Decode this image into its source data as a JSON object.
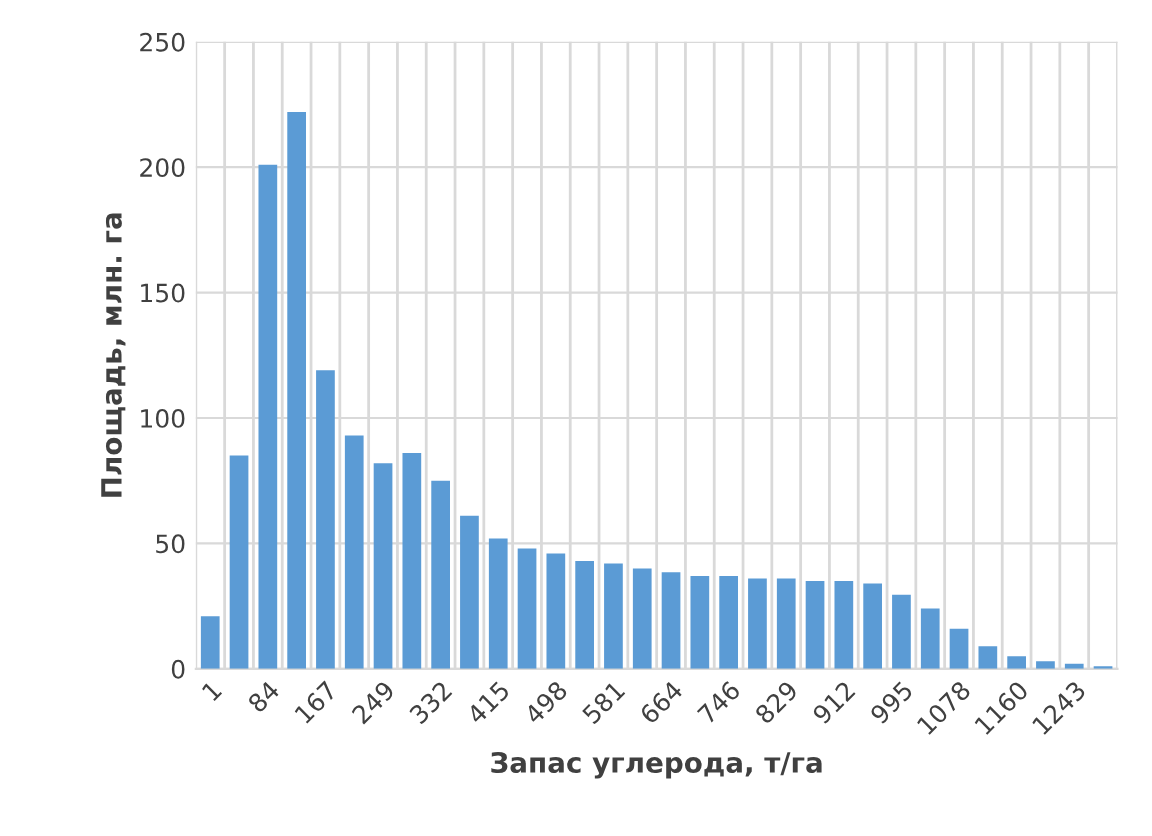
{
  "chart_data": {
    "type": "bar",
    "xlabel": "Запас углерода, т/га",
    "ylabel": "Площадь, млн. га",
    "categories": [
      "1",
      null,
      "84",
      null,
      "167",
      null,
      "249",
      null,
      "332",
      null,
      "415",
      null,
      "498",
      null,
      "581",
      null,
      "664",
      null,
      "746",
      null,
      "829",
      null,
      "912",
      null,
      "995",
      null,
      "1078",
      null,
      "1160",
      null,
      "1243",
      null
    ],
    "values": [
      21,
      85,
      201,
      222,
      119,
      93,
      82,
      86,
      75,
      61,
      52,
      48,
      46,
      43,
      42,
      40,
      38.5,
      37,
      37,
      36,
      36,
      35,
      35,
      34,
      29.5,
      24,
      16,
      9,
      5,
      3,
      2,
      1
    ],
    "color": "#5b9bd5",
    "ylim": [
      0,
      250
    ],
    "yticks": [
      0,
      50,
      100,
      150,
      200,
      250
    ],
    "grid": true
  }
}
